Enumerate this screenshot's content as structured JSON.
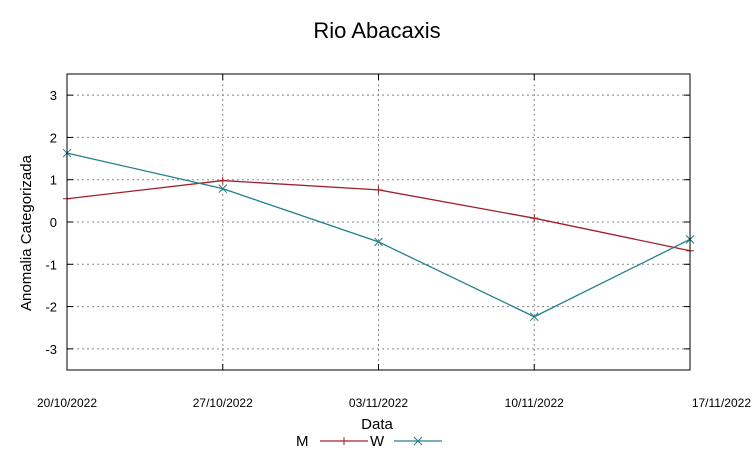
{
  "chart_data": {
    "type": "line",
    "title": "Rio Abacaxis",
    "xlabel": "Data",
    "ylabel": "Anomalia Categorizada",
    "x": [
      "20/10/2022",
      "27/10/2022",
      "03/11/2022",
      "10/11/2022",
      "17/11/2022"
    ],
    "ylim": [
      -3.5,
      3.5
    ],
    "yticks": [
      "-3",
      "-2",
      "-1",
      "0",
      "1",
      "2",
      "3"
    ],
    "grid": true,
    "legend_position": "bottom-center",
    "series": [
      {
        "name": "M",
        "color": "#a0202a",
        "marker": "plus",
        "values": [
          0.55,
          0.98,
          0.76,
          0.09,
          -0.68
        ]
      },
      {
        "name": "W",
        "color": "#20808a",
        "marker": "cross",
        "values": [
          1.63,
          0.79,
          -0.47,
          -2.24,
          -0.41
        ]
      }
    ]
  }
}
